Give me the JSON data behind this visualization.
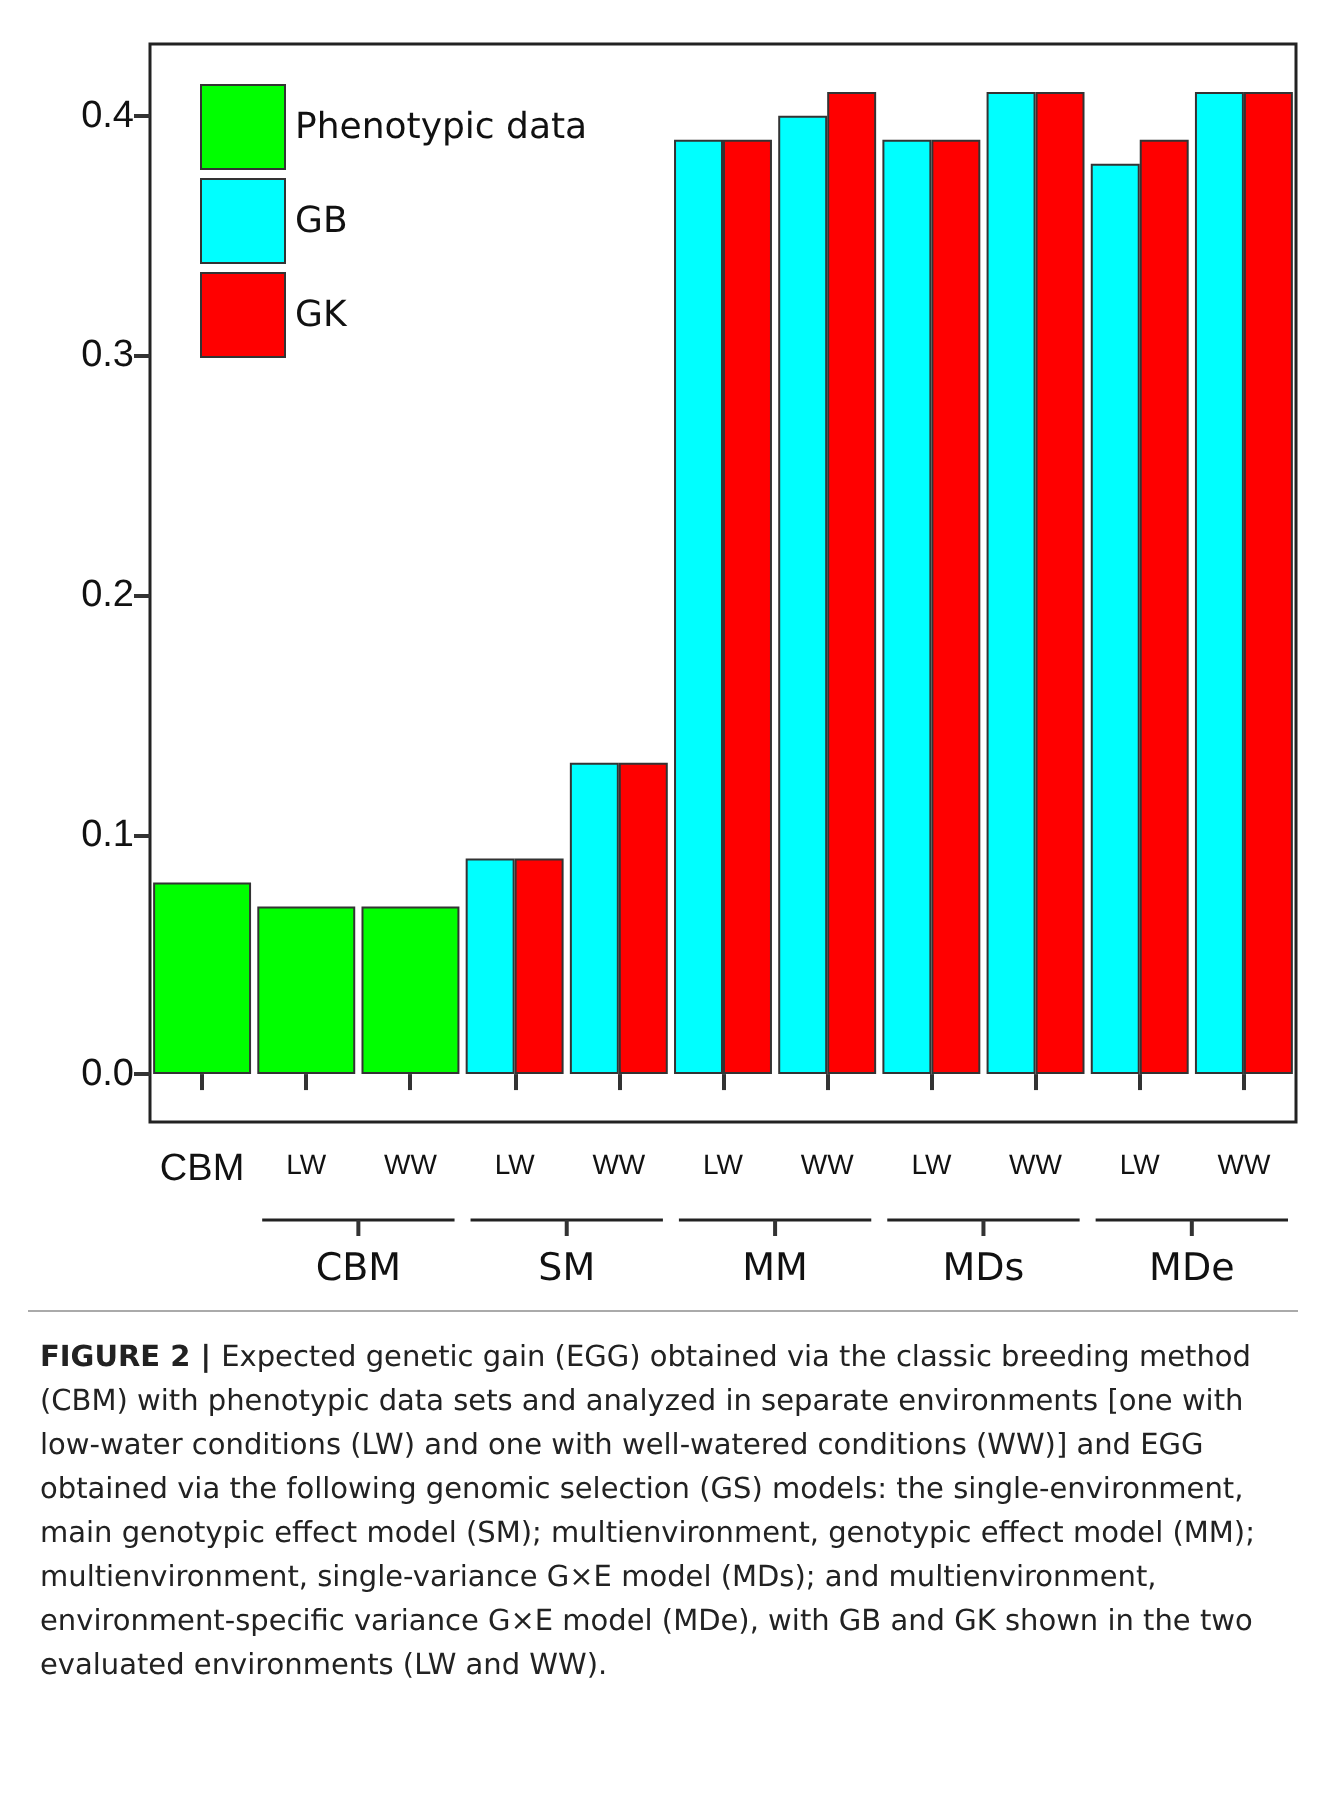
{
  "chart_data": {
    "type": "bar",
    "title": "FIGURE 2 |",
    "categories": [
      "CBM",
      "LW",
      "WW",
      "LW",
      "WW",
      "LW",
      "WW",
      "LW",
      "WW",
      "LW",
      "WW"
    ],
    "series": [
      {
        "name": "Phenotypic data",
        "color": "#00ff00",
        "values": [
          0.08,
          0.07,
          0.07,
          null,
          null,
          null,
          null,
          null,
          null,
          null,
          null
        ]
      },
      {
        "name": "GB",
        "color": "#00ffff",
        "values": [
          null,
          null,
          null,
          0.09,
          0.13,
          0.39,
          0.4,
          0.39,
          0.41,
          0.38,
          0.41
        ]
      },
      {
        "name": "GK",
        "color": "#ff0000",
        "values": [
          null,
          null,
          null,
          0.09,
          0.13,
          0.39,
          0.41,
          0.39,
          0.41,
          0.39,
          0.41
        ]
      }
    ],
    "ylim": [
      -0.02,
      0.43
    ],
    "yticks": [
      {
        "value": 0,
        "label": "0.0"
      },
      0.1,
      0.2,
      0.3,
      0.4
    ],
    "grid": false,
    "legend": "top left",
    "annotations": [
      "CBM",
      "SM",
      "MM",
      "MDs",
      "MDe",
      "Expected genetic gain (EGG) obtained via the classic breeding method (CBM) with phenotypic data sets and analyzed in separate environments [one with low-water conditions (LW) and one with well-watered conditions (WW)] and EGG obtained via the following genomic selection (GS) models: the single-environment, main genotypic effect model (SM); multienvironment, genotypic effect model (MM); multienvironment, single-variance G×E model (MDs); and multienvironment, environment-specific variance G×E model (MDe), with GB and GK shown in the two evaluated environments (LW and WW)."
    ]
  }
}
